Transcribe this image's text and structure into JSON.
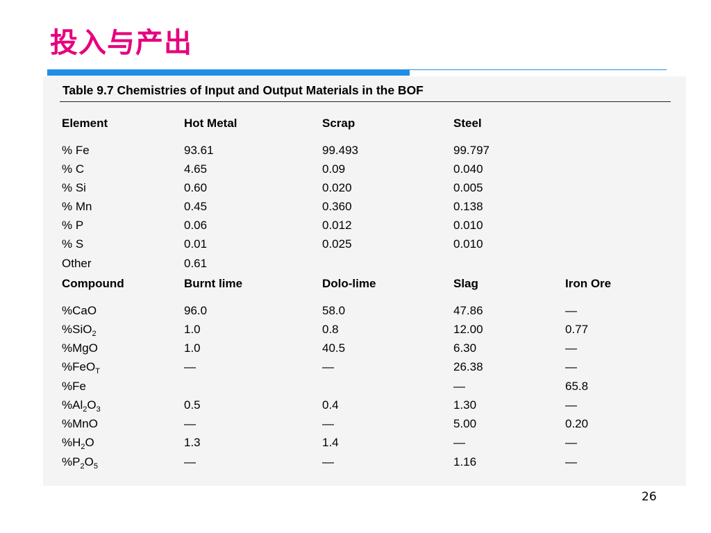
{
  "slide": {
    "title": "投入与产出",
    "page_number": "26"
  },
  "table": {
    "caption": "Table 9.7  Chemistries of Input and Output Materials in the BOF",
    "elements_header": [
      "Element",
      "Hot Metal",
      "Scrap",
      "Steel"
    ],
    "elements_rows": [
      [
        "% Fe",
        "93.61",
        "99.493",
        "99.797"
      ],
      [
        "% C",
        "4.65",
        "0.09",
        "0.040"
      ],
      [
        "% Si",
        "0.60",
        "0.020",
        "0.005"
      ],
      [
        "% Mn",
        "0.45",
        "0.360",
        "0.138"
      ],
      [
        "% P",
        "0.06",
        "0.012",
        "0.010"
      ],
      [
        "% S",
        "0.01",
        "0.025",
        "0.010"
      ],
      [
        "Other",
        "0.61",
        "",
        ""
      ]
    ],
    "compounds_header": [
      "Compound",
      "Burnt lime",
      "Dolo-lime",
      "Slag",
      "Iron Ore"
    ],
    "compounds_rows": [
      [
        "%CaO",
        "96.0",
        "58.0",
        "47.86",
        "—"
      ],
      [
        "%SiO₂",
        "1.0",
        "0.8",
        "12.00",
        "0.77"
      ],
      [
        "%MgO",
        "1.0",
        "40.5",
        "6.30",
        "—"
      ],
      [
        "%FeO_T",
        "—",
        "—",
        "26.38",
        "—"
      ],
      [
        "%Fe",
        "",
        "",
        "—",
        "65.8"
      ],
      [
        "%Al₂O₃",
        "0.5",
        "0.4",
        "1.30",
        "—"
      ],
      [
        "%MnO",
        "—",
        "—",
        "5.00",
        "0.20"
      ],
      [
        "%H₂O",
        "1.3",
        "1.4",
        "—",
        "—"
      ],
      [
        "%P₂O₅",
        "—",
        "—",
        "1.16",
        "—"
      ]
    ]
  }
}
